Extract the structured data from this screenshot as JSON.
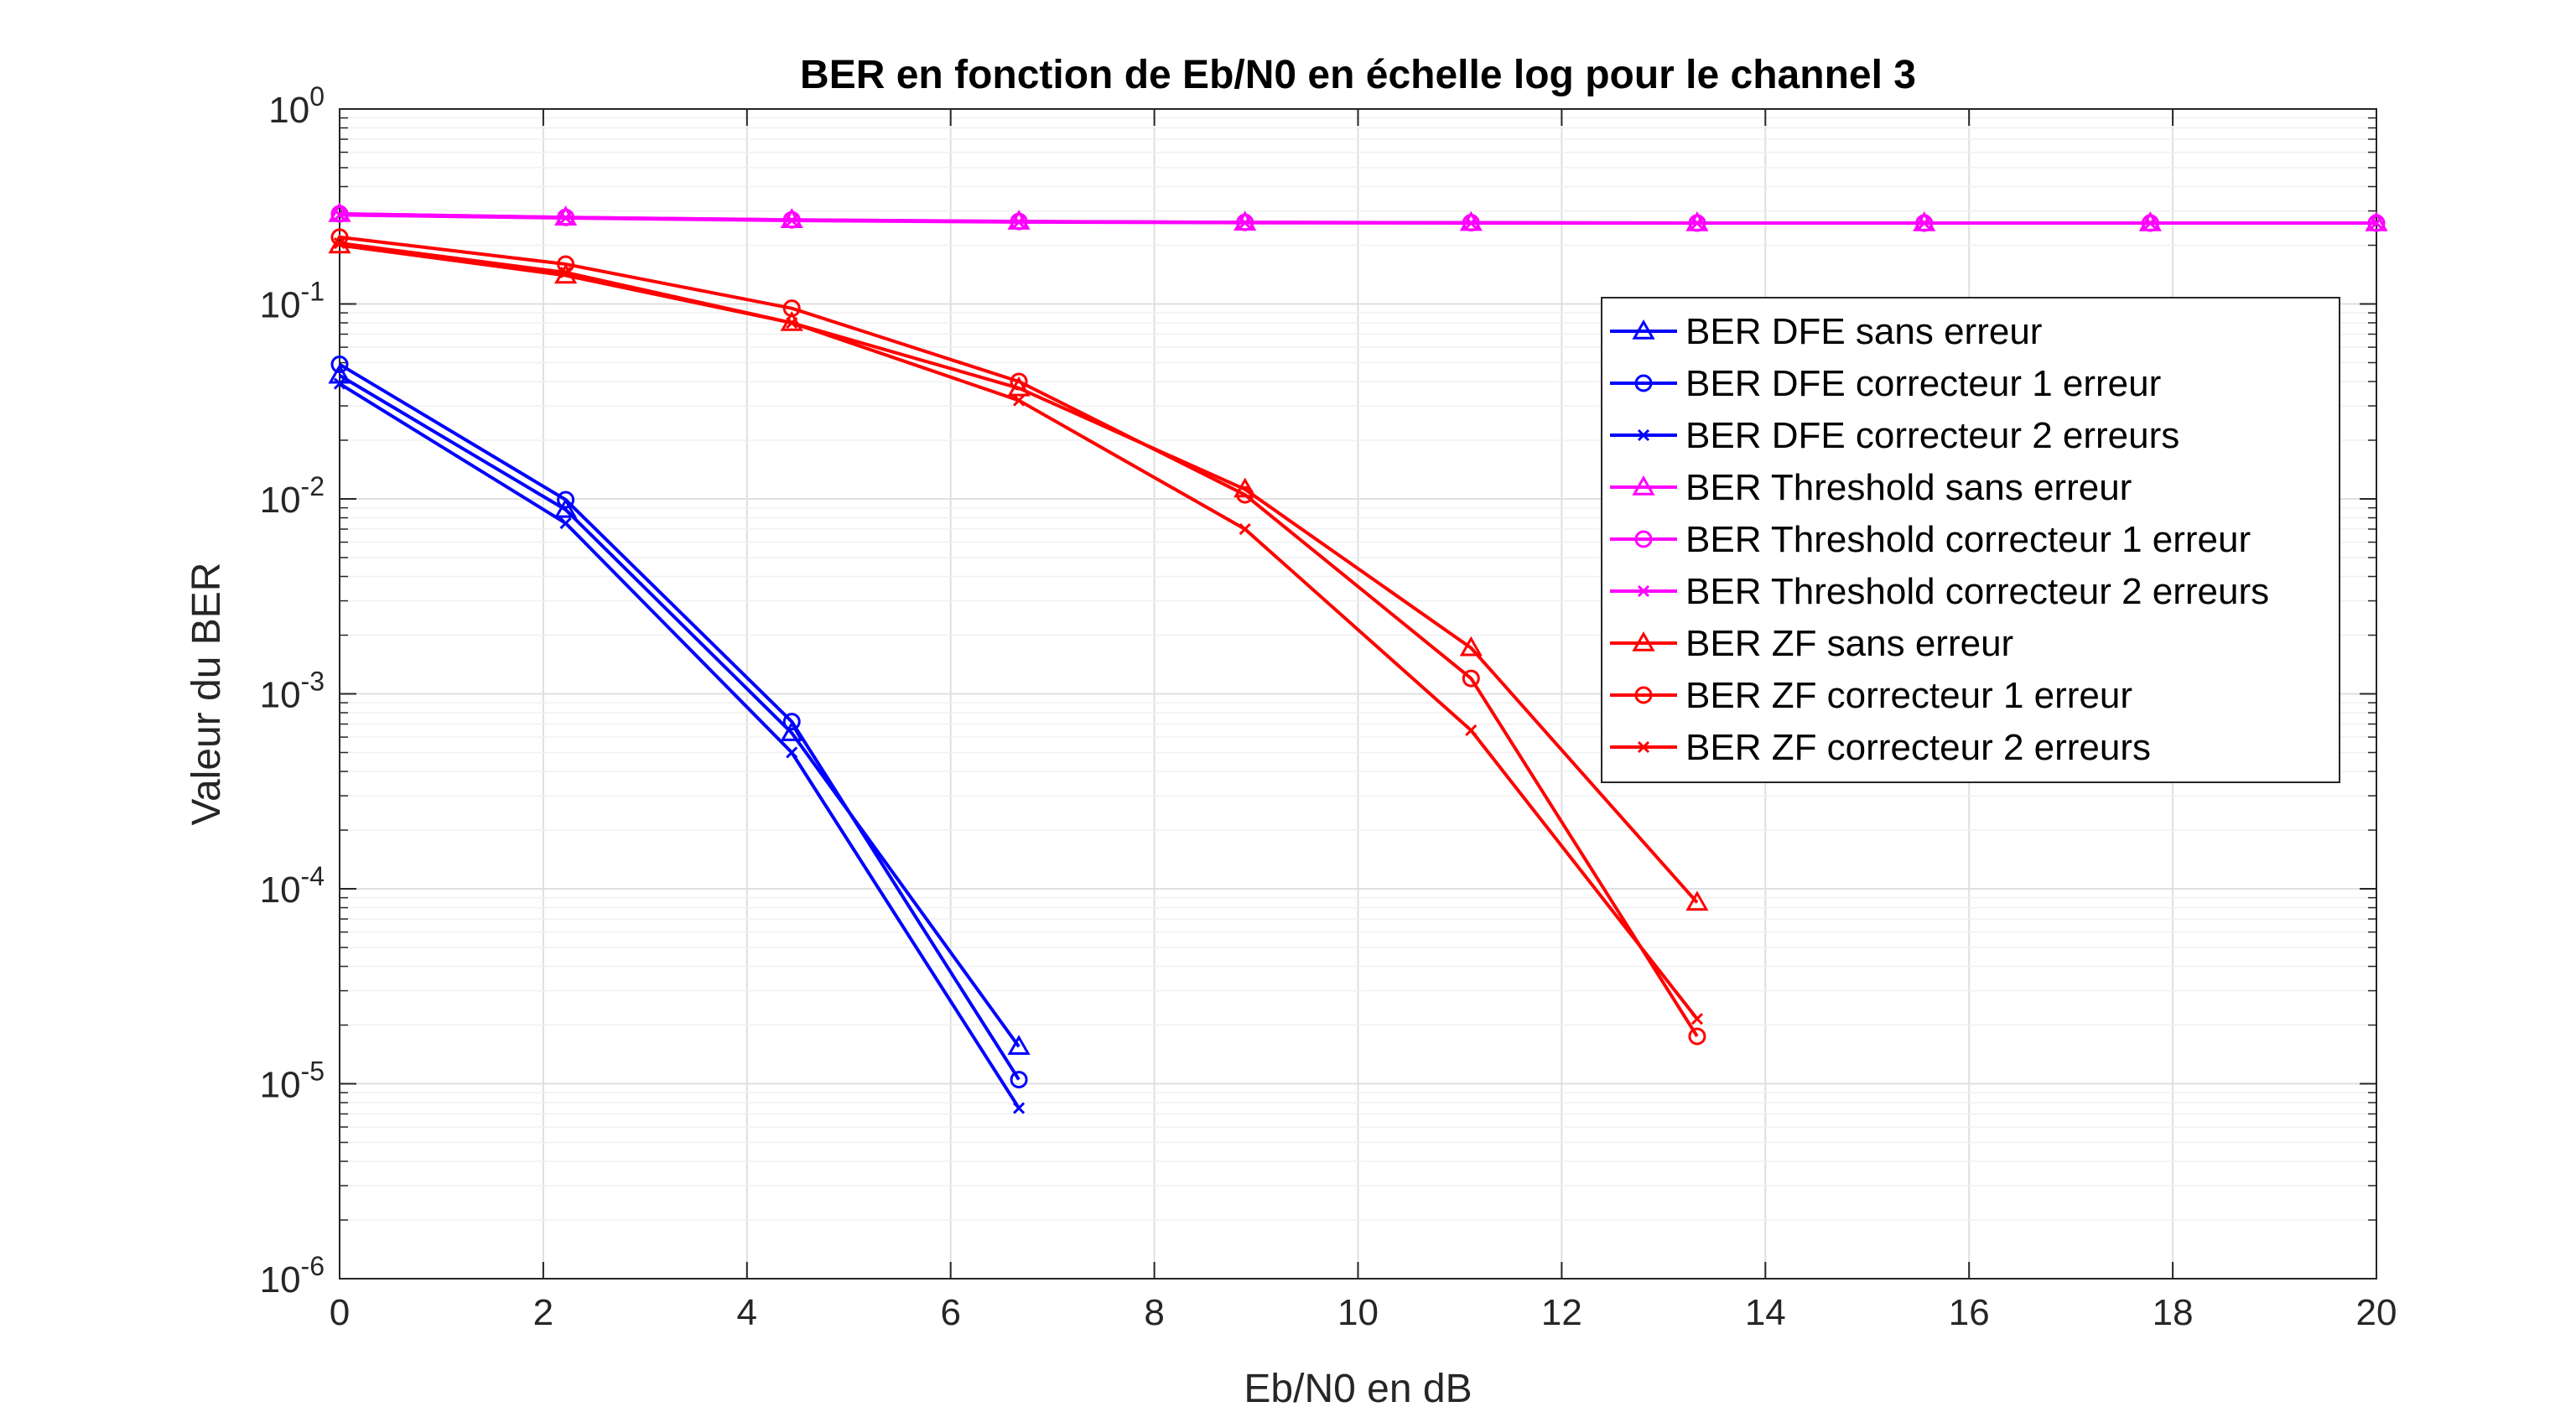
{
  "chart_data": {
    "type": "line",
    "title": "BER en fonction de Eb/N0 en échelle log pour le channel 3",
    "xlabel": "Eb/N0 en dB",
    "ylabel": "Valeur du BER",
    "xlim": [
      0,
      20
    ],
    "ylim": [
      1e-06,
      1
    ],
    "yscale": "log",
    "grid": true,
    "legend_position": "top-right",
    "x_ticks": [
      "0",
      "2",
      "4",
      "6",
      "8",
      "10",
      "12",
      "14",
      "16",
      "18",
      "20"
    ],
    "y_ticks": [
      {
        "base": "10",
        "exp": "0"
      },
      {
        "base": "10",
        "exp": "-1"
      },
      {
        "base": "10",
        "exp": "-2"
      },
      {
        "base": "10",
        "exp": "-3"
      },
      {
        "base": "10",
        "exp": "-4"
      },
      {
        "base": "10",
        "exp": "-5"
      },
      {
        "base": "10",
        "exp": "-6"
      }
    ],
    "series": [
      {
        "name": "BER DFE sans erreur",
        "color": "#0000ff",
        "marker": "triangle",
        "x": [
          0,
          2.22,
          4.44,
          6.67
        ],
        "y": [
          0.043,
          0.0088,
          0.00063,
          1.55e-05
        ]
      },
      {
        "name": "BER DFE correcteur 1 erreur",
        "color": "#0000ff",
        "marker": "circle",
        "x": [
          0,
          2.22,
          4.44,
          6.67
        ],
        "y": [
          0.049,
          0.0099,
          0.00072,
          1.05e-05
        ]
      },
      {
        "name": "BER DFE correcteur 2 erreurs",
        "color": "#0000ff",
        "marker": "x",
        "x": [
          0,
          2.22,
          4.44,
          6.67
        ],
        "y": [
          0.039,
          0.0075,
          0.0005,
          7.5e-06
        ]
      },
      {
        "name": "BER Threshold sans erreur",
        "color": "#ff00ff",
        "marker": "triangle",
        "x": [
          0,
          2.22,
          4.44,
          6.67,
          8.89,
          11.11,
          13.33,
          15.56,
          17.78,
          20
        ],
        "y": [
          0.29,
          0.278,
          0.27,
          0.265,
          0.262,
          0.261,
          0.26,
          0.26,
          0.26,
          0.26
        ]
      },
      {
        "name": "BER Threshold correcteur 1 erreur",
        "color": "#ff00ff",
        "marker": "circle",
        "x": [
          0,
          2.22,
          4.44,
          6.67,
          8.89,
          11.11,
          13.33,
          15.56,
          17.78,
          20
        ],
        "y": [
          0.29,
          0.278,
          0.27,
          0.265,
          0.262,
          0.261,
          0.26,
          0.26,
          0.26,
          0.26
        ]
      },
      {
        "name": "BER Threshold correcteur 2 erreurs",
        "color": "#ff00ff",
        "marker": "x",
        "x": [
          0,
          2.22,
          4.44,
          6.67,
          8.89,
          11.11,
          13.33,
          15.56,
          17.78,
          20
        ],
        "y": [
          0.286,
          0.276,
          0.268,
          0.263,
          0.261,
          0.26,
          0.26,
          0.26,
          0.26,
          0.26
        ]
      },
      {
        "name": "BER ZF sans erreur",
        "color": "#ff0000",
        "marker": "triangle",
        "x": [
          0,
          2.22,
          4.44,
          6.67,
          8.89,
          11.11,
          13.33
        ],
        "y": [
          0.2,
          0.14,
          0.08,
          0.037,
          0.0112,
          0.00172,
          8.5e-05
        ]
      },
      {
        "name": "BER ZF correcteur 1 erreur",
        "color": "#ff0000",
        "marker": "circle",
        "x": [
          0,
          2.22,
          4.44,
          6.67,
          8.89,
          11.11,
          13.33
        ],
        "y": [
          0.22,
          0.16,
          0.095,
          0.04,
          0.0105,
          0.0012,
          1.75e-05
        ]
      },
      {
        "name": "BER ZF correcteur 2 erreurs",
        "color": "#ff0000",
        "marker": "x",
        "x": [
          0,
          2.22,
          4.44,
          6.67,
          8.89,
          11.11,
          13.33
        ],
        "y": [
          0.205,
          0.145,
          0.08,
          0.032,
          0.007,
          0.00065,
          2.15e-05
        ]
      }
    ]
  }
}
